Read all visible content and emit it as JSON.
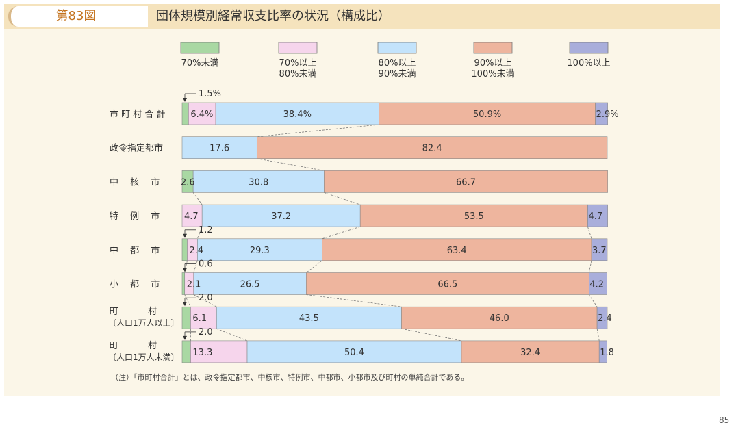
{
  "header": {
    "figure_label": "第83図",
    "title": "団体規模別経常収支比率の状況（構成比）"
  },
  "footnote": "（注）「市町村合計」とは、政令指定都市、中核市、特例市、中都市、小都市及び町村の単純合計である。",
  "page_number": "85",
  "chart_data": {
    "type": "bar",
    "orientation": "horizontal",
    "stacked": "percent",
    "unit": "%",
    "legend": [
      {
        "lines": [
          "70%未満"
        ],
        "color": "#a9d8a3"
      },
      {
        "lines": [
          "70%以上",
          "80%未満"
        ],
        "color": "#f6d5ec"
      },
      {
        "lines": [
          "80%以上",
          "90%未満"
        ],
        "color": "#c3e3fb"
      },
      {
        "lines": [
          "90%以上",
          "100%未満"
        ],
        "color": "#eeb59e"
      },
      {
        "lines": [
          "100%以上"
        ],
        "color": "#a9aedb"
      }
    ],
    "categories": [
      {
        "lines": [
          "市 町 村 合 計"
        ],
        "values": [
          1.5,
          6.4,
          38.4,
          50.9,
          2.9
        ],
        "labels": [
          "1.5%",
          "6.4%",
          "38.4%",
          "50.9%",
          "2.9%"
        ]
      },
      {
        "lines": [
          "政令指定都市"
        ],
        "values": [
          0,
          0,
          17.6,
          82.4,
          0
        ],
        "labels": [
          "",
          "",
          "17.6",
          "82.4",
          ""
        ]
      },
      {
        "lines": [
          "中　 核　 市"
        ],
        "values": [
          2.6,
          0,
          30.8,
          66.7,
          0
        ],
        "labels": [
          "2.6",
          "",
          "30.8",
          "66.7",
          ""
        ]
      },
      {
        "lines": [
          "特　 例　 市"
        ],
        "values": [
          0,
          4.7,
          37.2,
          53.5,
          4.7
        ],
        "labels": [
          "",
          "4.7",
          "37.2",
          "53.5",
          "4.7"
        ]
      },
      {
        "lines": [
          "中　 都　 市"
        ],
        "values": [
          1.2,
          2.4,
          29.3,
          63.4,
          3.7
        ],
        "labels": [
          "1.2",
          "2.4",
          "29.3",
          "63.4",
          "3.7"
        ]
      },
      {
        "lines": [
          "小　 都　 市"
        ],
        "values": [
          0.6,
          2.1,
          26.5,
          66.5,
          4.2
        ],
        "labels": [
          "0.6",
          "2.1",
          "26.5",
          "66.5",
          "4.2"
        ]
      },
      {
        "lines": [
          "町　　　 村",
          "〔人口1万人以上〕"
        ],
        "values": [
          2.0,
          6.1,
          43.5,
          46.0,
          2.4
        ],
        "labels": [
          "2.0",
          "6.1",
          "43.5",
          "46.0",
          "2.4"
        ]
      },
      {
        "lines": [
          "町　　　 村",
          "〔人口1万人未満〕"
        ],
        "values": [
          2.0,
          13.3,
          50.4,
          32.4,
          1.8
        ],
        "labels": [
          "2.0",
          "13.3",
          "50.4",
          "32.4",
          "1.8"
        ]
      }
    ],
    "xlim": [
      0,
      100
    ],
    "grid": false,
    "legend_position": "top"
  }
}
